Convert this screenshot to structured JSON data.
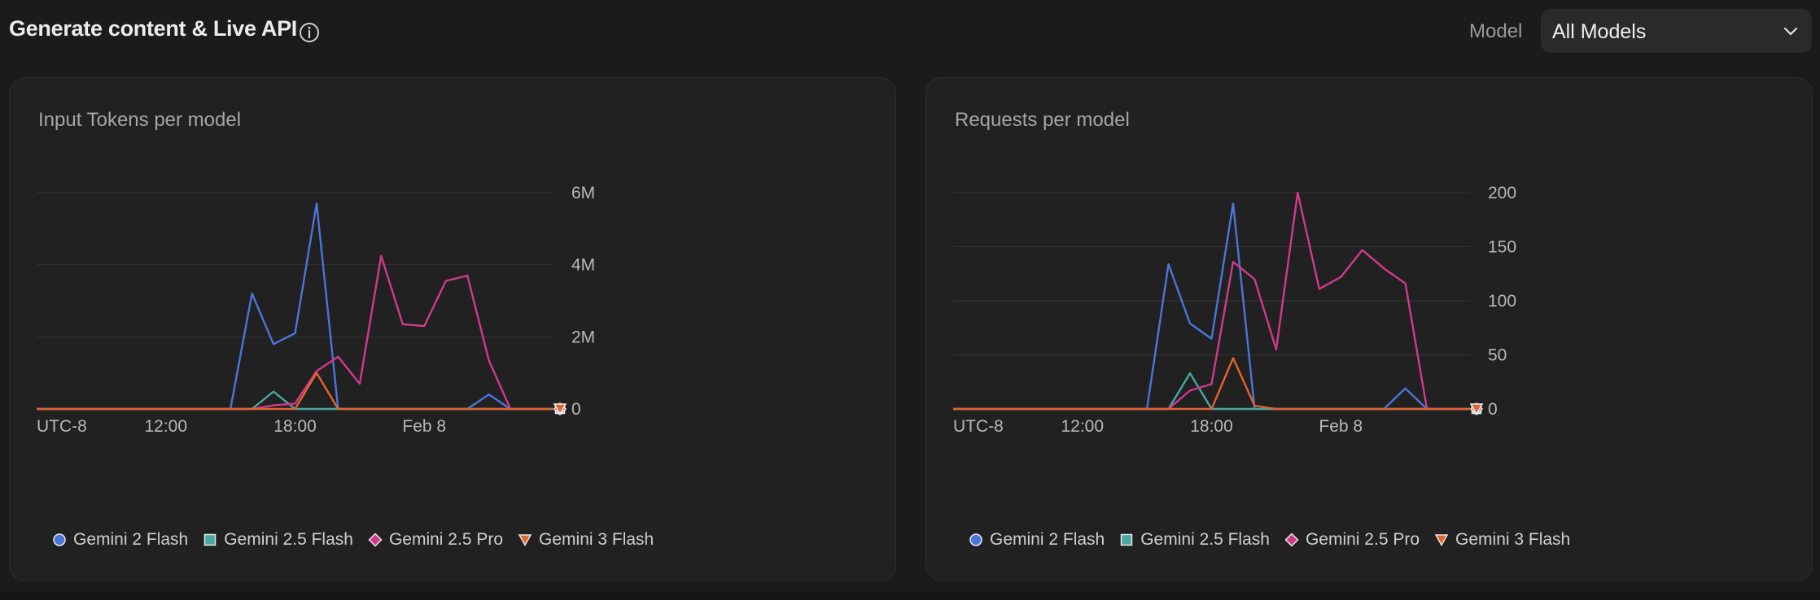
{
  "header": {
    "title": "Generate content & Live API",
    "model_label": "Model",
    "model_value": "All Models"
  },
  "colors": {
    "gemini_2_flash": "#4c74d9",
    "gemini_25_flash": "#4aa8a3",
    "gemini_25_pro": "#d03a8a",
    "gemini_3_flash": "#e0652f"
  },
  "chart_data": [
    {
      "type": "line",
      "title": "Input Tokens per model",
      "y_tick_labels": [
        "0",
        "2M",
        "4M",
        "6M"
      ],
      "y_ticks": [
        0,
        2000000,
        4000000,
        6000000
      ],
      "ylim": [
        0,
        6000000
      ],
      "x_tick_labels": [
        "UTC-8",
        "12:00",
        "18:00",
        "Feb 8"
      ],
      "x_ticks": [
        0,
        6,
        12,
        18
      ],
      "xlim": [
        0,
        24
      ],
      "grid": true,
      "legend": "bottom-left",
      "series": [
        {
          "name": "Gemini 2 Flash",
          "marker": "circle",
          "points": [
            [
              0,
              0
            ],
            [
              9,
              0
            ],
            [
              10,
              3200000
            ],
            [
              11,
              1800000
            ],
            [
              12,
              2100000
            ],
            [
              13,
              5700000
            ],
            [
              14,
              0
            ],
            [
              20,
              0
            ],
            [
              21,
              400000
            ],
            [
              22,
              0
            ],
            [
              24,
              0
            ]
          ]
        },
        {
          "name": "Gemini 2.5 Flash",
          "marker": "square",
          "points": [
            [
              0,
              0
            ],
            [
              10,
              0
            ],
            [
              11,
              480000
            ],
            [
              12,
              0
            ],
            [
              24,
              0
            ]
          ]
        },
        {
          "name": "Gemini 2.5 Pro",
          "marker": "diamond",
          "points": [
            [
              0,
              0
            ],
            [
              10,
              0
            ],
            [
              11,
              100000
            ],
            [
              12,
              150000
            ],
            [
              13,
              1050000
            ],
            [
              14,
              1450000
            ],
            [
              15,
              700000
            ],
            [
              16,
              4250000
            ],
            [
              17,
              2350000
            ],
            [
              18,
              2300000
            ],
            [
              19,
              3550000
            ],
            [
              20,
              3700000
            ],
            [
              21,
              1350000
            ],
            [
              22,
              0
            ],
            [
              24,
              0
            ]
          ]
        },
        {
          "name": "Gemini 3 Flash",
          "marker": "triangle",
          "points": [
            [
              0,
              0
            ],
            [
              12,
              0
            ],
            [
              13,
              1000000
            ],
            [
              14,
              0
            ],
            [
              24,
              0
            ]
          ]
        }
      ]
    },
    {
      "type": "line",
      "title": "Requests per model",
      "y_tick_labels": [
        "0",
        "50",
        "100",
        "150",
        "200"
      ],
      "y_ticks": [
        0,
        50,
        100,
        150,
        200
      ],
      "ylim": [
        0,
        200
      ],
      "x_tick_labels": [
        "UTC-8",
        "12:00",
        "18:00",
        "Feb 8"
      ],
      "x_ticks": [
        0,
        6,
        12,
        18
      ],
      "xlim": [
        0,
        24
      ],
      "grid": true,
      "legend": "bottom-left",
      "series": [
        {
          "name": "Gemini 2 Flash",
          "marker": "circle",
          "points": [
            [
              0,
              0
            ],
            [
              9,
              0
            ],
            [
              10,
              134
            ],
            [
              11,
              79
            ],
            [
              12,
              65
            ],
            [
              13,
              190
            ],
            [
              14,
              0
            ],
            [
              20,
              0
            ],
            [
              21,
              19
            ],
            [
              22,
              0
            ],
            [
              24,
              0
            ]
          ]
        },
        {
          "name": "Gemini 2.5 Flash",
          "marker": "square",
          "points": [
            [
              0,
              0
            ],
            [
              10,
              0
            ],
            [
              11,
              33
            ],
            [
              12,
              0
            ],
            [
              24,
              0
            ]
          ]
        },
        {
          "name": "Gemini 2.5 Pro",
          "marker": "diamond",
          "points": [
            [
              0,
              0
            ],
            [
              10,
              0
            ],
            [
              11,
              17
            ],
            [
              12,
              23
            ],
            [
              13,
              136
            ],
            [
              14,
              120
            ],
            [
              15,
              55
            ],
            [
              16,
              200
            ],
            [
              17,
              111
            ],
            [
              18,
              122
            ],
            [
              19,
              147
            ],
            [
              20,
              130
            ],
            [
              21,
              116
            ],
            [
              22,
              0
            ],
            [
              24,
              0
            ]
          ]
        },
        {
          "name": "Gemini 3 Flash",
          "marker": "triangle",
          "points": [
            [
              0,
              0
            ],
            [
              12,
              0
            ],
            [
              13,
              47
            ],
            [
              14,
              3
            ],
            [
              15,
              0
            ],
            [
              24,
              0
            ]
          ]
        }
      ]
    }
  ]
}
